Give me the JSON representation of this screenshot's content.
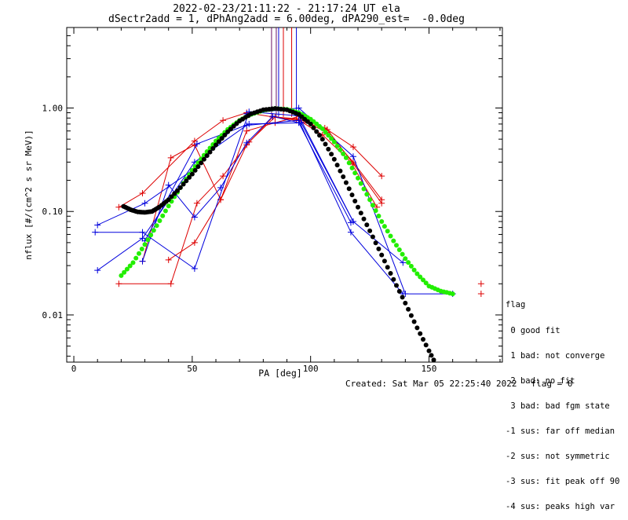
{
  "title_line1": "2022-02-23/21:11:22 - 21:17:24 UT ela",
  "title_line2": "dSectr2add = 1, dPhAng2add = 6.00deg, dPA290_est=  -0.0deg",
  "footer": {
    "created": "Created: Sat Mar 05 22:25:40 2022",
    "flag": "flag = 0"
  },
  "flag_legend": {
    "title": "flag",
    "items": [
      " 0 good fit",
      " 1 bad: not converge",
      " 2 bad: no fit",
      " 3 bad: bad fgm state",
      "-1 sus: far off median",
      "-2 sus: not symmetric",
      "-3 sus: fit peak off 90",
      "-4 sus: peaks high var"
    ]
  },
  "colors": {
    "red": "#dd0000",
    "blue": "#0000dd",
    "green": "#22ee00",
    "black": "#000000",
    "purple": "#6a1466"
  },
  "chart_data": {
    "type": "line",
    "xlabel": "PA [deg]",
    "ylabel": "nflux [#/(cm^2 s sr MeV)]",
    "xlim": [
      -3,
      181
    ],
    "ylim": [
      0.0035,
      6.0
    ],
    "ylog": true,
    "xticks": [
      0,
      50,
      100,
      150
    ],
    "xtick_labels": [
      "0",
      "50",
      "100",
      "150"
    ],
    "yticks": [
      0.01,
      0.1,
      1.0
    ],
    "ytick_labels": [
      "0.01",
      "0.10",
      "1.00"
    ],
    "series": [
      {
        "color": "red",
        "points": [
          [
            19,
            0.11
          ],
          [
            29,
            0.15
          ],
          [
            51,
            0.48
          ],
          [
            63,
            0.76
          ],
          [
            73,
            0.9
          ],
          [
            84,
            0.82
          ],
          [
            94,
            0.76
          ],
          [
            106,
            0.64
          ],
          [
            118,
            0.42
          ],
          [
            130,
            0.22
          ]
        ]
      },
      {
        "color": "red",
        "points": [
          [
            19,
            0.02
          ],
          [
            41,
            0.02
          ],
          [
            52,
            0.12
          ],
          [
            63,
            0.22
          ],
          [
            74,
            0.47
          ],
          [
            85,
            0.82
          ],
          [
            96,
            0.77
          ],
          [
            107,
            0.58
          ],
          [
            118,
            0.3
          ],
          [
            130,
            0.13
          ]
        ]
      },
      {
        "color": "red",
        "points": [
          [
            29,
            0.033
          ],
          [
            41,
            0.33
          ],
          [
            51,
            0.44
          ],
          [
            62,
            0.13
          ],
          [
            73,
            0.6
          ],
          [
            85,
            0.72
          ],
          [
            96,
            0.84
          ],
          [
            107,
            0.62
          ],
          [
            118,
            0.29
          ],
          [
            130,
            0.12
          ]
        ]
      },
      {
        "color": "red",
        "points": [
          [
            40,
            0.034
          ],
          [
            51,
            0.05
          ],
          [
            62,
            0.13
          ],
          [
            73,
            0.44
          ],
          [
            84,
            0.82
          ],
          [
            94,
            0.79
          ],
          [
            105,
            0.55
          ],
          [
            117,
            0.3
          ],
          [
            128,
            0.11
          ]
        ]
      },
      {
        "color": "red",
        "points": [
          [
            172,
            0.02
          ]
        ]
      },
      {
        "color": "red",
        "points": [
          [
            172,
            0.016
          ]
        ]
      },
      {
        "color": "blue",
        "points": [
          [
            10,
            0.074
          ],
          [
            30,
            0.12
          ],
          [
            51,
            0.26
          ],
          [
            73,
            0.88
          ],
          [
            95,
            1.0
          ],
          [
            118,
            0.34
          ],
          [
            140,
            0.016
          ],
          [
            160,
            0.016
          ]
        ]
      },
      {
        "color": "blue",
        "points": [
          [
            9,
            0.063
          ],
          [
            29,
            0.063
          ],
          [
            51,
            0.028
          ],
          [
            74,
            0.92
          ],
          [
            95,
            0.84
          ],
          [
            118,
            0.08
          ],
          [
            139,
            0.032
          ]
        ]
      },
      {
        "color": "blue",
        "points": [
          [
            10,
            0.027
          ],
          [
            29,
            0.055
          ],
          [
            51,
            0.3
          ],
          [
            73,
            0.68
          ],
          [
            95,
            0.76
          ],
          [
            117,
            0.063
          ],
          [
            139,
            0.016
          ]
        ]
      },
      {
        "color": "blue",
        "points": [
          [
            29,
            0.033
          ],
          [
            40,
            0.18
          ],
          [
            51,
            0.088
          ],
          [
            62,
            0.17
          ],
          [
            73,
            0.46
          ],
          [
            84,
            0.83
          ],
          [
            95,
            0.72
          ],
          [
            117,
            0.078
          ]
        ]
      },
      {
        "color": "blue",
        "points": [
          [
            30,
            0.052
          ],
          [
            52,
            0.45
          ],
          [
            74,
            0.7
          ],
          [
            96,
            0.72
          ],
          [
            118,
            0.08
          ]
        ]
      }
    ],
    "fits": [
      {
        "color": "green",
        "points": [
          [
            20,
            0.024
          ],
          [
            25,
            0.032
          ],
          [
            30,
            0.048
          ],
          [
            35,
            0.073
          ],
          [
            40,
            0.113
          ],
          [
            45,
            0.17
          ],
          [
            50,
            0.25
          ],
          [
            55,
            0.35
          ],
          [
            60,
            0.48
          ],
          [
            65,
            0.62
          ],
          [
            70,
            0.76
          ],
          [
            75,
            0.87
          ],
          [
            80,
            0.95
          ],
          [
            85,
            0.99
          ],
          [
            90,
            0.97
          ],
          [
            95,
            0.9
          ],
          [
            100,
            0.78
          ],
          [
            105,
            0.63
          ],
          [
            110,
            0.47
          ],
          [
            115,
            0.33
          ],
          [
            120,
            0.21
          ],
          [
            125,
            0.13
          ],
          [
            130,
            0.08
          ],
          [
            135,
            0.052
          ],
          [
            140,
            0.035
          ],
          [
            145,
            0.025
          ],
          [
            150,
            0.019
          ],
          [
            155,
            0.017
          ],
          [
            160,
            0.016
          ]
        ]
      },
      {
        "color": "black",
        "points": [
          [
            21,
            0.112
          ],
          [
            24,
            0.104
          ],
          [
            27,
            0.099
          ],
          [
            30,
            0.098
          ],
          [
            33,
            0.1
          ],
          [
            36,
            0.11
          ],
          [
            40,
            0.13
          ],
          [
            45,
            0.17
          ],
          [
            50,
            0.23
          ],
          [
            55,
            0.32
          ],
          [
            60,
            0.44
          ],
          [
            65,
            0.59
          ],
          [
            70,
            0.75
          ],
          [
            75,
            0.88
          ],
          [
            80,
            0.96
          ],
          [
            85,
            0.99
          ],
          [
            90,
            0.96
          ],
          [
            95,
            0.87
          ],
          [
            100,
            0.7
          ],
          [
            105,
            0.5
          ],
          [
            110,
            0.32
          ],
          [
            115,
            0.19
          ],
          [
            120,
            0.11
          ],
          [
            125,
            0.065
          ],
          [
            130,
            0.038
          ],
          [
            135,
            0.022
          ],
          [
            140,
            0.013
          ],
          [
            145,
            0.0075
          ],
          [
            150,
            0.0045
          ],
          [
            154,
            0.003
          ]
        ]
      }
    ],
    "vlines": [
      {
        "x": 83.5,
        "color": "purple"
      },
      {
        "x": 85.5,
        "color": "purple"
      },
      {
        "x": 86.5,
        "color": "blue"
      },
      {
        "x": 88.5,
        "color": "red"
      },
      {
        "x": 92.0,
        "color": "red"
      },
      {
        "x": 94.0,
        "color": "blue"
      }
    ]
  }
}
